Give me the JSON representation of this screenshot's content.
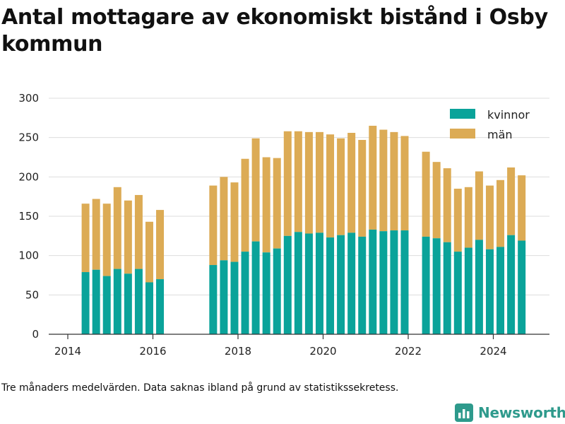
{
  "title": "Antal mottagare av ekonomiskt bistånd i Osby kommun",
  "footnote": "Tre månaders medelvärden. Data saknas ibland på grund av statistikssekretess.",
  "brand": "Newsworthy",
  "icons": {
    "brand": "bar-chart-icon"
  },
  "colors": {
    "kvinnor": "#0aa39a",
    "man": "#dcab55",
    "grid": "#dddddd",
    "axis": "#333333",
    "brand": "#2e9a8c"
  },
  "chart_data": {
    "type": "bar",
    "stacked": true,
    "x_ticks": [
      "2014",
      "2016",
      "2018",
      "2020",
      "2022",
      "2024"
    ],
    "y_ticks": [
      "0",
      "50",
      "100",
      "150",
      "200",
      "250",
      "300"
    ],
    "ylim": [
      0,
      300
    ],
    "grid": true,
    "legend_position": "top-right",
    "categories": [
      "2014-06",
      "2014-09",
      "2014-12",
      "2015-03",
      "2015-06",
      "2015-09",
      "2015-12",
      "2016-03",
      "2016-06",
      "2016-09",
      "2016-12",
      "2017-03",
      "2017-06",
      "2017-09",
      "2017-12",
      "2018-03",
      "2018-06",
      "2018-09",
      "2018-12",
      "2019-03",
      "2019-06",
      "2019-09",
      "2019-12",
      "2020-03",
      "2020-06",
      "2020-09",
      "2020-12",
      "2021-03",
      "2021-06",
      "2021-09",
      "2021-12",
      "2022-03",
      "2022-06",
      "2022-09",
      "2022-12",
      "2023-03",
      "2023-06",
      "2023-09",
      "2023-12",
      "2024-03",
      "2024-06",
      "2024-09"
    ],
    "series": [
      {
        "name": "kvinnor",
        "values": [
          79,
          82,
          74,
          83,
          77,
          83,
          66,
          70,
          null,
          null,
          null,
          null,
          88,
          94,
          92,
          105,
          118,
          104,
          109,
          125,
          130,
          128,
          129,
          123,
          126,
          129,
          124,
          133,
          131,
          132,
          132,
          null,
          124,
          122,
          117,
          105,
          110,
          120,
          108,
          111,
          126,
          119
        ]
      },
      {
        "name": "män",
        "values": [
          87,
          90,
          92,
          104,
          93,
          94,
          77,
          88,
          null,
          null,
          null,
          null,
          101,
          106,
          101,
          118,
          131,
          121,
          115,
          133,
          128,
          129,
          128,
          131,
          123,
          127,
          123,
          132,
          129,
          125,
          120,
          null,
          108,
          97,
          94,
          80,
          77,
          87,
          81,
          85,
          86,
          83
        ]
      }
    ]
  }
}
